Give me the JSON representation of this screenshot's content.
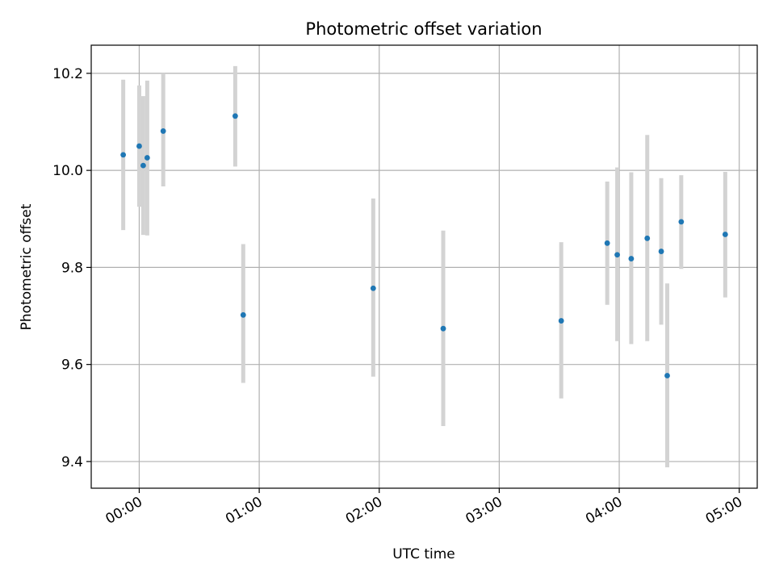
{
  "chart_data": {
    "type": "scatter",
    "title": "Photometric offset variation",
    "xlabel": "UTC time",
    "ylabel": "Photometric offset",
    "xlim": [
      "23:36",
      "05:09"
    ],
    "ylim": [
      9.345,
      10.258
    ],
    "grid": true,
    "x_ticks": [
      "00:00",
      "01:00",
      "02:00",
      "03:00",
      "04:00",
      "05:00"
    ],
    "y_ticks": [
      "9.4",
      "9.6",
      "9.8",
      "10.0",
      "10.2"
    ],
    "marker_color": "#1f77b4",
    "errorbar_color": "#d3d3d3",
    "points": [
      {
        "x": "23:52",
        "y": 10.032,
        "ylow": 9.877,
        "yhigh": 10.187
      },
      {
        "x": "00:00",
        "y": 10.05,
        "ylow": 9.925,
        "yhigh": 10.175
      },
      {
        "x": "00:02",
        "y": 10.01,
        "ylow": 9.867,
        "yhigh": 10.153
      },
      {
        "x": "00:04",
        "y": 10.026,
        "ylow": 9.866,
        "yhigh": 10.185
      },
      {
        "x": "00:12",
        "y": 10.081,
        "ylow": 9.967,
        "yhigh": 10.2
      },
      {
        "x": "00:48",
        "y": 10.112,
        "ylow": 10.008,
        "yhigh": 10.215
      },
      {
        "x": "00:52",
        "y": 9.702,
        "ylow": 9.562,
        "yhigh": 9.848
      },
      {
        "x": "01:57",
        "y": 9.757,
        "ylow": 9.575,
        "yhigh": 9.942
      },
      {
        "x": "02:32",
        "y": 9.674,
        "ylow": 9.473,
        "yhigh": 9.876
      },
      {
        "x": "03:31",
        "y": 9.69,
        "ylow": 9.53,
        "yhigh": 9.852
      },
      {
        "x": "03:54",
        "y": 9.85,
        "ylow": 9.723,
        "yhigh": 9.977
      },
      {
        "x": "03:59",
        "y": 9.826,
        "ylow": 9.648,
        "yhigh": 10.006
      },
      {
        "x": "04:06",
        "y": 9.818,
        "ylow": 9.642,
        "yhigh": 9.996
      },
      {
        "x": "04:14",
        "y": 9.86,
        "ylow": 9.648,
        "yhigh": 10.073
      },
      {
        "x": "04:21",
        "y": 9.833,
        "ylow": 9.682,
        "yhigh": 9.984
      },
      {
        "x": "04:24",
        "y": 9.577,
        "ylow": 9.388,
        "yhigh": 9.767
      },
      {
        "x": "04:31",
        "y": 9.894,
        "ylow": 9.797,
        "yhigh": 9.99
      },
      {
        "x": "04:53",
        "y": 9.868,
        "ylow": 9.738,
        "yhigh": 9.997
      }
    ]
  }
}
